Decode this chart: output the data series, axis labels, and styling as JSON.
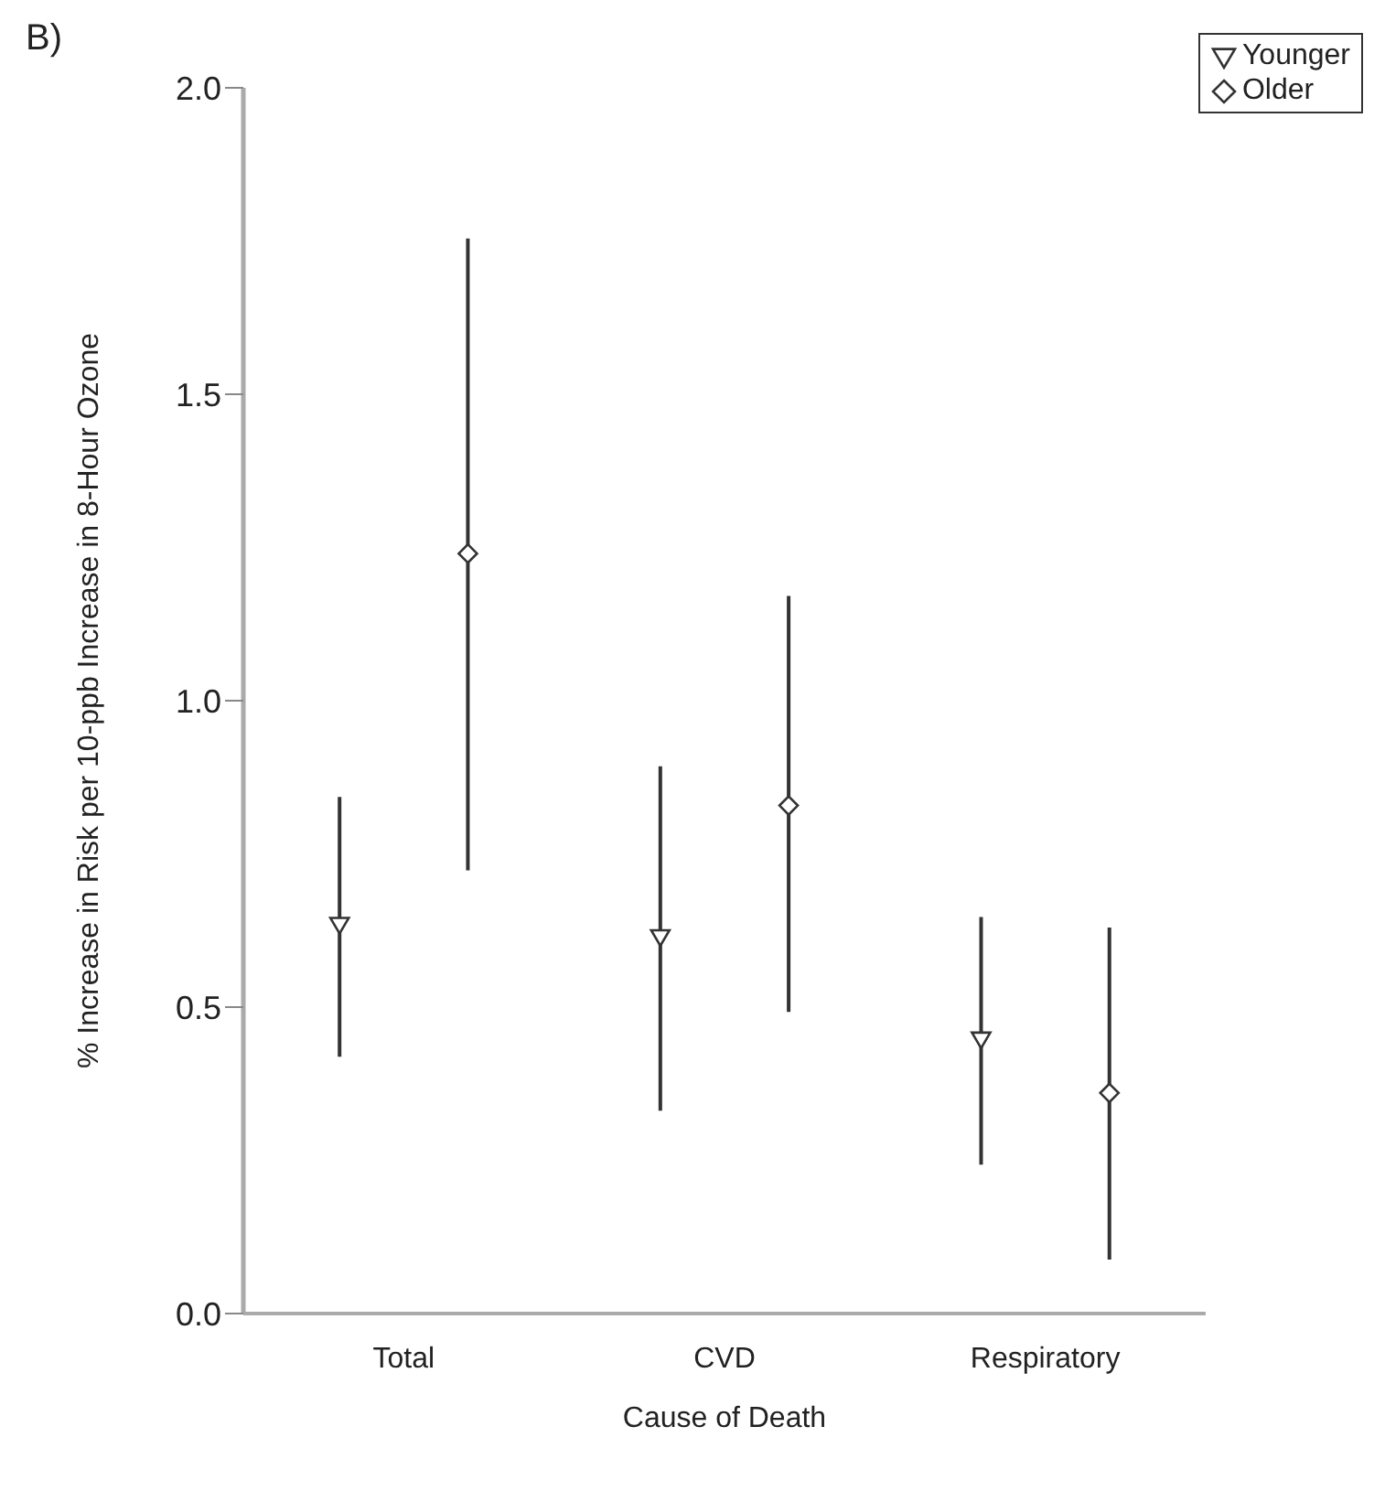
{
  "chart_data": {
    "type": "scatter",
    "title": "B)",
    "xlabel": "Cause of Death",
    "ylabel": "% Increase in Risk per 10-ppb Increase in 8-Hour Ozone",
    "categories": [
      "Total",
      "CVD",
      "Respiratory"
    ],
    "series": [
      {
        "name": "Younger",
        "color": "#333333",
        "marker": "triangle",
        "values": [
          0.635,
          0.615,
          0.448
        ],
        "errors": [
          [
            0.419,
            0.843
          ],
          [
            0.331,
            0.893
          ],
          [
            0.243,
            0.647
          ]
        ]
      },
      {
        "name": "Older",
        "color": "#333333",
        "marker": "diamond",
        "values": [
          1.24,
          0.829,
          0.36
        ],
        "errors": [
          [
            0.723,
            1.754
          ],
          [
            0.492,
            1.171
          ],
          [
            0.088,
            0.63
          ]
        ]
      }
    ],
    "ylim": [
      0,
      2
    ],
    "yticks": [
      {
        "value": 0,
        "label": "0.0"
      },
      {
        "value": 0.5,
        "label": "0.5"
      },
      {
        "value": 1,
        "label": "1.0"
      },
      {
        "value": 1.5,
        "label": "1.5"
      },
      {
        "value": 2,
        "label": "2.0"
      }
    ],
    "grid": false,
    "legend": "top right"
  }
}
